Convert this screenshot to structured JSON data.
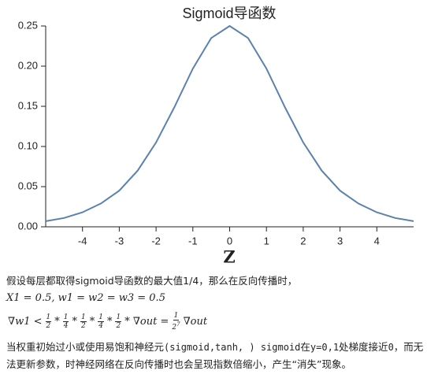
{
  "chart_data": {
    "type": "line",
    "title": "Sigmoid导函数",
    "x_label": "Z",
    "x": [
      -5,
      -4.5,
      -4,
      -3.5,
      -3,
      -2.5,
      -2,
      -1.5,
      -1,
      -0.5,
      0,
      0.5,
      1,
      1.5,
      2,
      2.5,
      3,
      3.5,
      4,
      4.5,
      5
    ],
    "values": [
      0.007,
      0.011,
      0.018,
      0.029,
      0.045,
      0.07,
      0.105,
      0.149,
      0.197,
      0.235,
      0.25,
      0.235,
      0.197,
      0.149,
      0.105,
      0.07,
      0.045,
      0.029,
      0.018,
      0.011,
      0.007
    ],
    "color": "#5b82ad",
    "xlim": [
      -5,
      5
    ],
    "xticks": [
      -4,
      -3,
      -2,
      -1,
      0,
      1,
      2,
      3,
      4
    ],
    "ylim": [
      0,
      0.25
    ],
    "yticks": [
      {
        "value": 0,
        "label": "0.00"
      },
      0.05,
      {
        "value": 0.1,
        "label": "0.10"
      },
      0.15,
      {
        "value": 0.2,
        "label": "0.20"
      },
      0.25
    ],
    "grid": false
  },
  "text": {
    "paragraph_1": "假设每层都取得sigmoid导函数的最大值1/4，那么在反向传播时，",
    "formula_1": "X1 = 0.5, w1 = w2 = w3 = 0.5",
    "formula_2": [
      "∇w1 <",
      {
        "num": "1",
        "den": "2"
      },
      "*",
      {
        "num": "1",
        "den": "4"
      },
      "*",
      {
        "num": "1",
        "den": "2"
      },
      "*",
      {
        "num": "1",
        "den": "4"
      },
      "*",
      {
        "num": "1",
        "den": "2"
      },
      "* ∇out =",
      {
        "num": "1",
        "den": "2",
        "sup": "7"
      },
      "∇out"
    ],
    "paragraph_2": [
      {
        "text": "当权重初始过小或使用易饱和神经元"
      },
      {
        "code": "(sigmoid,tanh, ) sigmoid"
      },
      {
        "text": "在"
      },
      {
        "code": "y=0,1"
      },
      {
        "text": "处梯度接近"
      },
      {
        "code": "0"
      },
      {
        "text": "，而无法更新参数，时神经网络在反向传播时也会呈现指数倍缩小，产生“消失”现象。"
      }
    ]
  }
}
